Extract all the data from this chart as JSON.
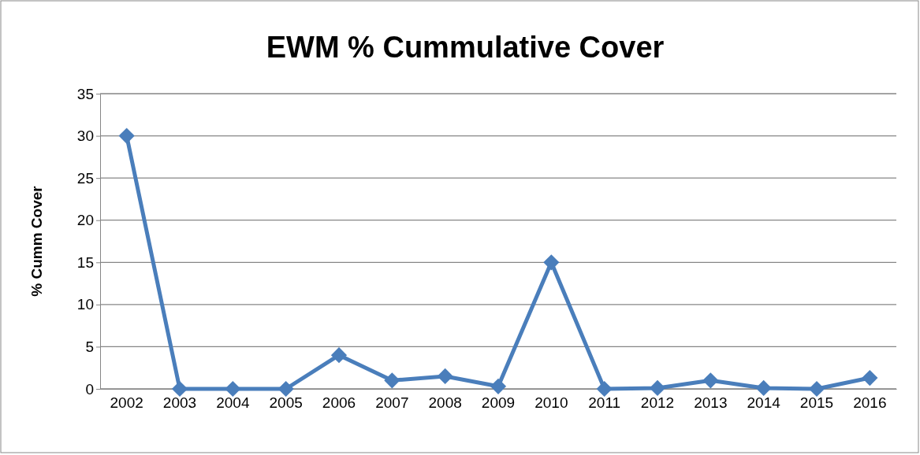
{
  "chart_data": {
    "type": "line",
    "title": "EWM % Cummulative Cover",
    "ylabel": "% Cumm Cover",
    "categories": [
      "2002",
      "2003",
      "2004",
      "2005",
      "2006",
      "2007",
      "2008",
      "2009",
      "2010",
      "2011",
      "2012",
      "2013",
      "2014",
      "2015",
      "2016"
    ],
    "series": [
      {
        "color": "#4a7ebb",
        "values": [
          30,
          0,
          0,
          0,
          4,
          1,
          1.5,
          0.3,
          15,
          0,
          0.1,
          1,
          0.1,
          0,
          1.3
        ]
      }
    ],
    "ylim": [
      0,
      35
    ],
    "yticks": [
      0,
      5,
      10,
      15,
      20,
      25,
      30,
      35
    ],
    "grid": "y",
    "marker": "diamond"
  }
}
